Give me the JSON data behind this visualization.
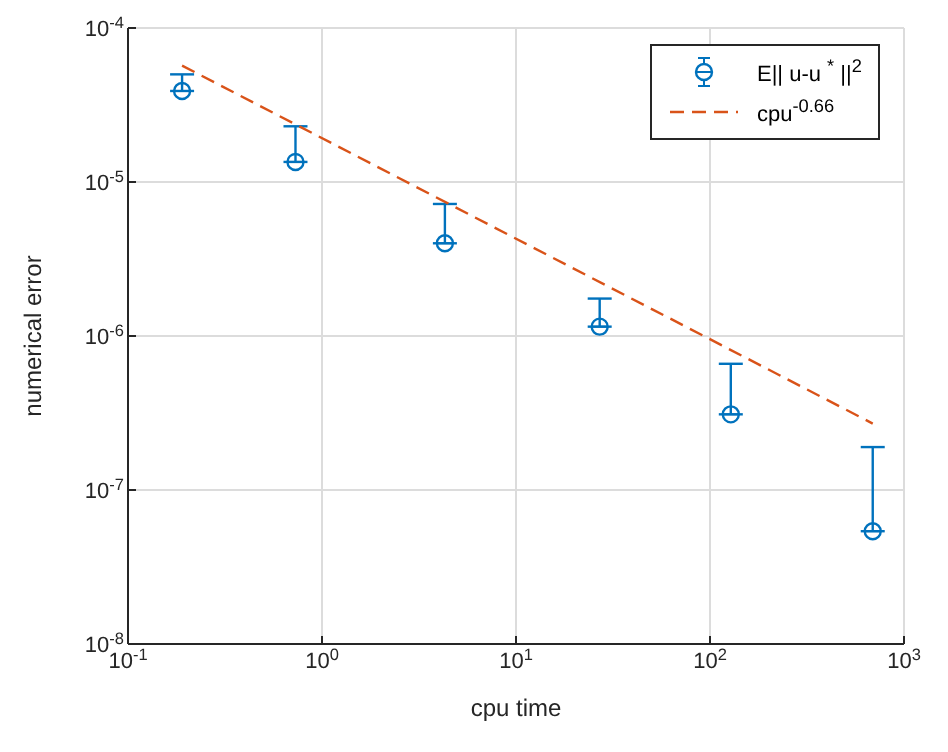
{
  "chart_data": {
    "type": "scatter",
    "xlabel": "cpu time",
    "ylabel": "numerical error",
    "log": "xy",
    "grid": true,
    "legend": "top right",
    "marker": "circle",
    "x": [
      0.19,
      0.73,
      4.3,
      27,
      128,
      690
    ],
    "xlim": [
      0.1,
      1000
    ],
    "ylim": [
      1e-08,
      0.0001
    ],
    "xticks": [
      {
        "value": 0.1,
        "label": "10$^{-1}$"
      },
      {
        "value": 1,
        "label": "10$^{0}$"
      },
      {
        "value": 10,
        "label": "10$^{1}$"
      },
      {
        "value": 100,
        "label": "10$^{2}$"
      },
      {
        "value": 1000,
        "label": "10$^{3}$"
      }
    ],
    "yticks": [
      {
        "value": 1e-08,
        "label": "10$^{-8}$"
      },
      {
        "value": 1e-07,
        "label": "10$^{-7}$"
      },
      {
        "value": 1e-06,
        "label": "10$^{-6}$"
      },
      {
        "value": 1e-05,
        "label": "10$^{-5}$"
      },
      {
        "value": 0.0001,
        "label": "10$^{-4}$"
      }
    ],
    "series": [
      {
        "name": "E|| u-u $^{*}$ ||$^{2}$",
        "color": "#0072bd",
        "values": [
          3.9e-05,
          1.35e-05,
          4e-06,
          1.15e-06,
          3.1e-07,
          5.4e-08
        ],
        "errors": [
          [
            3.9e-05,
            5e-05
          ],
          [
            1.35e-05,
            2.3e-05
          ],
          [
            4e-06,
            7.2e-06
          ],
          [
            1.15e-06,
            1.75e-06
          ],
          [
            3.1e-07,
            6.6e-07
          ],
          [
            5.4e-08,
            1.9e-07
          ]
        ]
      },
      {
        "name": "cpu$^{-0.66}$",
        "type": "line",
        "color": "#d95319",
        "line_style": "dashed",
        "marker": "none",
        "x": [
          0.19,
          690
        ],
        "values": [
          5.7e-05,
          2.7e-07
        ]
      }
    ]
  }
}
